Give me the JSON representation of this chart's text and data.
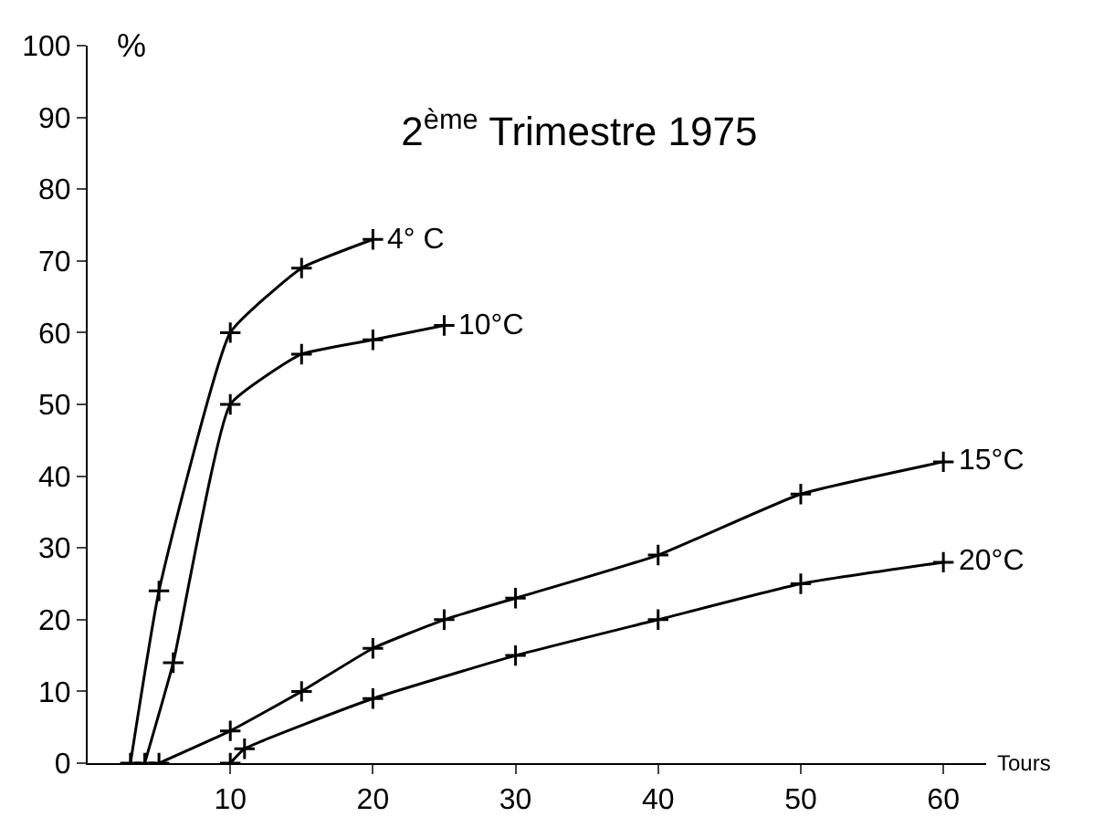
{
  "chart_data": {
    "type": "line",
    "title": "2$^{ème}$ Trimestre 1975",
    "xlabel": "Tours",
    "ylabel": "%",
    "xlim": [
      0,
      63
    ],
    "xticks": [
      10,
      20,
      30,
      40,
      50,
      60
    ],
    "ylim": [
      0,
      100
    ],
    "yticks": [
      0,
      10,
      20,
      30,
      40,
      50,
      60,
      70,
      80,
      90,
      100
    ],
    "marker": "cross",
    "line_style": "solid",
    "series": [
      {
        "name": "4° C",
        "color": "#000000",
        "x": [
          3,
          5,
          10,
          15,
          20
        ],
        "values": [
          0,
          24,
          60,
          69,
          73
        ]
      },
      {
        "name": "10°C",
        "color": "#000000",
        "x": [
          4,
          6,
          10,
          15,
          20,
          25
        ],
        "values": [
          0,
          14,
          50,
          57,
          59,
          61
        ]
      },
      {
        "name": "15°C",
        "color": "#000000",
        "x": [
          5,
          10,
          15,
          20,
          25,
          30,
          40,
          50,
          60
        ],
        "values": [
          0,
          4.5,
          10,
          16,
          20,
          23,
          29,
          37.5,
          42
        ]
      },
      {
        "name": "20°C",
        "color": "#000000",
        "x": [
          10,
          11,
          20,
          30,
          40,
          50,
          60
        ],
        "values": [
          0,
          2,
          9,
          15,
          20,
          25,
          28
        ]
      }
    ]
  }
}
